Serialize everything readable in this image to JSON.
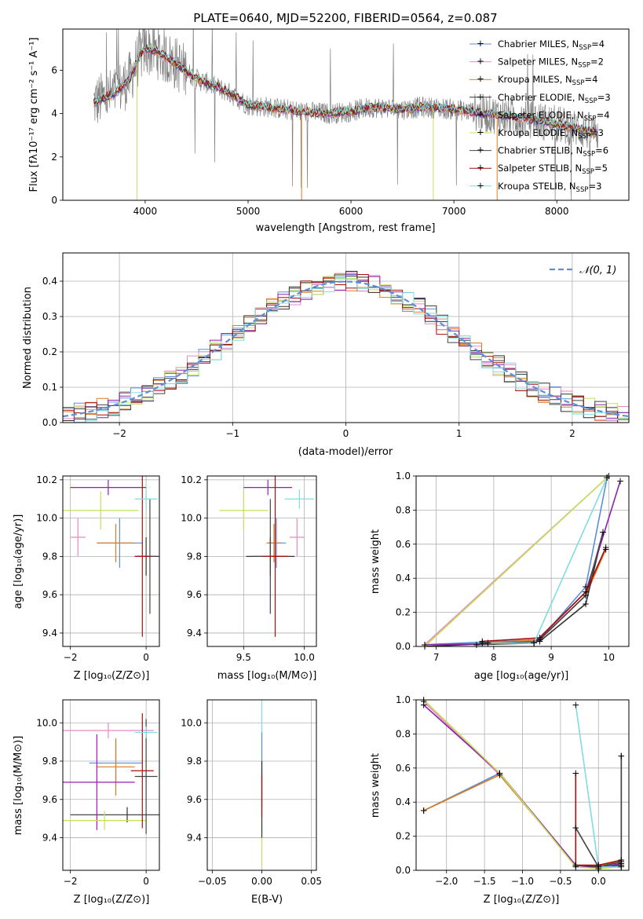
{
  "colors": {
    "Chabrier MILES": "#5b8fdc",
    "Salpeter MILES": "#e88ac0",
    "Kroupa MILES": "#e07a20",
    "Chabrier ELODIE": "#333333",
    "Salpeter ELODIE": "#8e22a8",
    "Kroupa ELODIE": "#c4e05a",
    "Chabrier STELIB": "#444444",
    "Salpeter STELIB": "#a50e0e",
    "Kroupa STELIB": "#7fdde0",
    "data": "#808080",
    "gauss": "#5b8fdc"
  },
  "chart_data": [
    {
      "id": "spectrum",
      "type": "line",
      "title": "PLATE=0640, MJD=52200, FIBERID=0564, z=0.087",
      "xlabel": "wavelength [Angstrom, rest frame]",
      "ylabel": "Flux [fλ10⁻¹⁷ erg cm⁻² s⁻¹ A⁻¹]",
      "xlim": [
        3200,
        8700
      ],
      "ylim": [
        0,
        7.9
      ],
      "xticks": [
        "4000",
        "5000",
        "6000",
        "7000",
        "8000"
      ],
      "yticks": [
        "0",
        "2",
        "4",
        "6"
      ],
      "grid": false,
      "legend_position": "upper-right",
      "legend": [
        {
          "base": "Chabrier MILES, N",
          "sub": "SSP",
          "tail": "=4"
        },
        {
          "base": "Salpeter MILES, N",
          "sub": "SSP",
          "tail": "=2"
        },
        {
          "base": "Kroupa MILES, N",
          "sub": "SSP",
          "tail": "=4"
        },
        {
          "base": "Chabrier ELODIE, N",
          "sub": "SSP",
          "tail": "=3"
        },
        {
          "base": "Salpeter ELODIE, N",
          "sub": "SSP",
          "tail": "=4"
        },
        {
          "base": "Kroupa ELODIE, N",
          "sub": "SSP",
          "tail": "=3"
        },
        {
          "base": "Chabrier STELIB, N",
          "sub": "SSP",
          "tail": "=6"
        },
        {
          "base": "Salpeter STELIB, N",
          "sub": "SSP",
          "tail": "=5"
        },
        {
          "base": "Kroupa STELIB, N",
          "sub": "SSP",
          "tail": "=3"
        }
      ],
      "continuum": [
        [
          3500,
          4.5
        ],
        [
          3550,
          4.6
        ],
        [
          3700,
          4.9
        ],
        [
          3850,
          5.6
        ],
        [
          3950,
          6.7
        ],
        [
          4000,
          7.0
        ],
        [
          4100,
          6.9
        ],
        [
          4300,
          6.3
        ],
        [
          4500,
          5.6
        ],
        [
          4800,
          5.0
        ],
        [
          5000,
          4.4
        ],
        [
          5200,
          4.3
        ],
        [
          5500,
          4.1
        ],
        [
          5800,
          4.0
        ],
        [
          6000,
          4.1
        ],
        [
          6200,
          4.3
        ],
        [
          6500,
          4.2
        ],
        [
          6700,
          4.3
        ],
        [
          7000,
          4.2
        ],
        [
          7300,
          4.0
        ],
        [
          7500,
          3.9
        ],
        [
          7800,
          3.7
        ],
        [
          8000,
          3.5
        ],
        [
          8300,
          3.2
        ],
        [
          8400,
          3.1
        ]
      ]
    },
    {
      "id": "residuals",
      "type": "line",
      "xlabel": "(data-model)/error",
      "ylabel": "Normed distribution",
      "xlim": [
        -2.5,
        2.5
      ],
      "ylim": [
        0,
        0.48
      ],
      "xticks": [
        "−2",
        "−1",
        "0",
        "1",
        "2"
      ],
      "yticks": [
        "0.0",
        "0.1",
        "0.2",
        "0.3",
        "0.4"
      ],
      "grid": true,
      "legend": "𝒩(0, 1)",
      "legend_position": "upper-right"
    },
    {
      "id": "age-vs-Z",
      "type": "scatter",
      "xlabel": "Z [log₁₀(Z/Z⊙)]",
      "ylabel": "age  [log₁₀(age/yr)]",
      "xlim": [
        -2.2,
        0.35
      ],
      "ylim": [
        9.33,
        10.22
      ],
      "xticks": [
        "−2",
        "0"
      ],
      "yticks": [
        "9.4",
        "9.6",
        "9.8",
        "10.0",
        "10.2"
      ],
      "grid": true,
      "points": [
        {
          "model": "Chabrier MILES",
          "x": -0.7,
          "xerr": 0.6,
          "y": 9.87,
          "yerr": 0.13
        },
        {
          "model": "Salpeter MILES",
          "x": -1.8,
          "xerr": 0.2,
          "y": 9.9,
          "yerr": 0.1
        },
        {
          "model": "Kroupa MILES",
          "x": -0.8,
          "xerr": 0.5,
          "y": 9.87,
          "yerr": 0.1
        },
        {
          "model": "Chabrier ELODIE",
          "x": 0.0,
          "xerr": 0.3,
          "y": 9.8,
          "yerr": 0.1
        },
        {
          "model": "Salpeter ELODIE",
          "x": -1.0,
          "xerr": 1.0,
          "y": 10.16,
          "yerr": 0.04
        },
        {
          "model": "Kroupa ELODIE",
          "x": -1.2,
          "xerr": 1.0,
          "y": 10.04,
          "yerr": 0.1
        },
        {
          "model": "Chabrier STELIB",
          "x": 0.1,
          "xerr": 0.3,
          "y": 9.8,
          "yerr": 0.3
        },
        {
          "model": "Salpeter STELIB",
          "x": -0.1,
          "xerr": 0.2,
          "y": 9.8,
          "yerr": 0.42
        },
        {
          "model": "Kroupa STELIB",
          "x": 0.0,
          "xerr": 0.3,
          "y": 10.1,
          "yerr": 0.05
        }
      ]
    },
    {
      "id": "age-vs-mass",
      "type": "scatter",
      "xlabel": "mass [log₁₀(M/M⊙)]",
      "xlim": [
        9.2,
        10.1
      ],
      "ylim": [
        9.33,
        10.22
      ],
      "xticks": [
        "9.5",
        "10.0"
      ],
      "yticks": [
        "9.4",
        "9.6",
        "9.8",
        "10.0",
        "10.2"
      ],
      "grid": true,
      "points": [
        {
          "model": "Chabrier MILES",
          "x": 9.77,
          "xerr": 0.08,
          "y": 9.87,
          "yerr": 0.13
        },
        {
          "model": "Salpeter MILES",
          "x": 9.94,
          "xerr": 0.06,
          "y": 9.9,
          "yerr": 0.1
        },
        {
          "model": "Kroupa MILES",
          "x": 9.75,
          "xerr": 0.06,
          "y": 9.87,
          "yerr": 0.1
        },
        {
          "model": "Chabrier ELODIE",
          "x": 9.72,
          "xerr": 0.2,
          "y": 9.8,
          "yerr": 0.1
        },
        {
          "model": "Salpeter ELODIE",
          "x": 9.7,
          "xerr": 0.2,
          "y": 10.16,
          "yerr": 0.04
        },
        {
          "model": "Kroupa ELODIE",
          "x": 9.5,
          "xerr": 0.2,
          "y": 10.04,
          "yerr": 0.1
        },
        {
          "model": "Chabrier STELIB",
          "x": 9.72,
          "xerr": 0.15,
          "y": 9.8,
          "yerr": 0.3
        },
        {
          "model": "Salpeter STELIB",
          "x": 9.76,
          "xerr": 0.1,
          "y": 9.8,
          "yerr": 0.42
        },
        {
          "model": "Kroupa STELIB",
          "x": 9.96,
          "xerr": 0.12,
          "y": 10.1,
          "yerr": 0.05
        }
      ]
    },
    {
      "id": "weight-vs-age",
      "type": "line",
      "xlabel": "age  [log₁₀(age/yr)]",
      "ylabel": "mass weight",
      "xlim": [
        6.65,
        10.35
      ],
      "ylim": [
        0,
        1
      ],
      "xticks": [
        "7",
        "8",
        "9",
        "10"
      ],
      "yticks": [
        "0.0",
        "0.2",
        "0.4",
        "0.6",
        "0.8",
        "1.0"
      ],
      "grid": true,
      "series": [
        {
          "model": "Chabrier MILES",
          "x": [
            6.8,
            8.8,
            9.6,
            9.97
          ],
          "y": [
            0.01,
            0.04,
            0.35,
            0.99
          ]
        },
        {
          "model": "Salpeter MILES",
          "x": [
            6.8,
            9.97
          ],
          "y": [
            0.01,
            0.99
          ]
        },
        {
          "model": "Kroupa MILES",
          "x": [
            7.8,
            8.8,
            9.6,
            9.95
          ],
          "y": [
            0.02,
            0.04,
            0.3,
            0.57
          ]
        },
        {
          "model": "Chabrier ELODIE",
          "x": [
            6.8,
            8.8,
            9.6,
            9.9
          ],
          "y": [
            0.0,
            0.03,
            0.25,
            0.67
          ]
        },
        {
          "model": "Salpeter ELODIE",
          "x": [
            6.8,
            8.7,
            9.6,
            10.2
          ],
          "y": [
            0.01,
            0.02,
            0.32,
            0.97
          ]
        },
        {
          "model": "Kroupa ELODIE",
          "x": [
            6.8,
            10.0
          ],
          "y": [
            0.0,
            1.0
          ]
        },
        {
          "model": "Chabrier STELIB",
          "x": [
            7.7,
            8.7,
            8.8,
            9.6,
            9.9
          ],
          "y": [
            0.01,
            0.02,
            0.04,
            0.3,
            0.67
          ]
        },
        {
          "model": "Salpeter STELIB",
          "x": [
            7.8,
            8.8,
            9.6,
            9.95
          ],
          "y": [
            0.03,
            0.05,
            0.32,
            0.58
          ]
        },
        {
          "model": "Kroupa STELIB",
          "x": [
            7.9,
            8.7,
            9.97
          ],
          "y": [
            0.02,
            0.02,
            0.99
          ]
        }
      ]
    },
    {
      "id": "mass-vs-Z",
      "type": "scatter",
      "xlabel": "Z [log₁₀(Z/Z⊙)]",
      "ylabel": "mass [log₁₀(M/M⊙)]",
      "xlim": [
        -2.2,
        0.35
      ],
      "ylim": [
        9.23,
        10.12
      ],
      "xticks": [
        "−2",
        "0"
      ],
      "yticks": [
        "9.4",
        "9.6",
        "9.8",
        "10.0"
      ],
      "grid": true,
      "points": [
        {
          "model": "Chabrier MILES",
          "x": -0.8,
          "xerr": 0.7,
          "y": 9.79,
          "yerr": 0.12
        },
        {
          "model": "Salpeter MILES",
          "x": -1.0,
          "xerr": 1.2,
          "y": 9.96,
          "yerr": 0.04
        },
        {
          "model": "Kroupa MILES",
          "x": -0.8,
          "xerr": 0.5,
          "y": 9.77,
          "yerr": 0.15
        },
        {
          "model": "Chabrier ELODIE",
          "x": -0.5,
          "xerr": 1.5,
          "y": 9.52,
          "yerr": 0.04
        },
        {
          "model": "Salpeter ELODIE",
          "x": -1.3,
          "xerr": 1.0,
          "y": 9.69,
          "yerr": 0.25
        },
        {
          "model": "Kroupa ELODIE",
          "x": -1.1,
          "xerr": 1.1,
          "y": 9.49,
          "yerr": 0.05
        },
        {
          "model": "Chabrier STELIB",
          "x": 0.0,
          "xerr": 0.3,
          "y": 9.72,
          "yerr": 0.3
        },
        {
          "model": "Salpeter STELIB",
          "x": -0.1,
          "xerr": 0.3,
          "y": 9.75,
          "yerr": 0.3
        },
        {
          "model": "Kroupa STELIB",
          "x": 0.0,
          "xerr": 0.3,
          "y": 9.95,
          "yerr": 0.03
        }
      ]
    },
    {
      "id": "mass-vs-EBV",
      "type": "scatter",
      "xlabel": "E(B-V)",
      "xlim": [
        -0.055,
        0.055
      ],
      "ylim": [
        9.23,
        10.12
      ],
      "xticks": [
        "−0.05",
        "0.00",
        "0.05"
      ],
      "yticks": [
        "9.4",
        "9.6",
        "9.8",
        "10.0"
      ],
      "grid": true,
      "points": [
        {
          "model": "Kroupa ELODIE",
          "x": 0.0,
          "y": 9.4,
          "yerr": 0.15
        },
        {
          "model": "Kroupa STELIB",
          "x": 0.0,
          "y": 9.9,
          "yerr": 0.22
        },
        {
          "model": "Chabrier MILES",
          "x": 0.0,
          "y": 9.75,
          "yerr": 0.2
        },
        {
          "model": "Chabrier ELODIE",
          "x": 0.0,
          "y": 9.6,
          "yerr": 0.2
        },
        {
          "model": "Salpeter STELIB",
          "x": 0.0,
          "y": 9.62,
          "yerr": 0.11
        }
      ]
    },
    {
      "id": "weight-vs-Z",
      "type": "line",
      "xlabel": "Z [log₁₀(Z/Z⊙)]",
      "ylabel": "mass weight",
      "xlim": [
        -2.4,
        0.4
      ],
      "ylim": [
        0,
        1
      ],
      "xticks": [
        "−2.0",
        "−1.5",
        "−1.0",
        "−0.5",
        "0.0"
      ],
      "yticks": [
        "0.0",
        "0.2",
        "0.4",
        "0.6",
        "0.8",
        "1.0"
      ],
      "grid": true,
      "series": [
        {
          "model": "Chabrier MILES",
          "x": [
            -2.3,
            -1.3,
            -0.3,
            0.0,
            0.3
          ],
          "y": [
            0.35,
            0.57,
            0.03,
            0.02,
            0.04
          ]
        },
        {
          "model": "Salpeter MILES",
          "x": [
            -2.3,
            -1.3,
            -0.3,
            0.0,
            0.3
          ],
          "y": [
            0.99,
            0.56,
            0.03,
            0.02,
            0.05
          ]
        },
        {
          "model": "Kroupa MILES",
          "x": [
            -2.3,
            -1.3,
            -0.3,
            0.0,
            0.3
          ],
          "y": [
            0.35,
            0.56,
            0.03,
            0.03,
            0.05
          ]
        },
        {
          "model": "Chabrier ELODIE",
          "x": [
            -0.3,
            0.0,
            0.3,
            0.3
          ],
          "y": [
            0.03,
            0.02,
            0.03,
            0.67
          ]
        },
        {
          "model": "Salpeter ELODIE",
          "x": [
            -2.3,
            -1.3,
            -0.3,
            0.0,
            0.3
          ],
          "y": [
            0.97,
            0.57,
            0.03,
            0.01,
            0.04
          ]
        },
        {
          "model": "Kroupa ELODIE",
          "x": [
            -2.3,
            -1.3,
            -0.3,
            0.0,
            0.3
          ],
          "y": [
            1.0,
            0.57,
            0.02,
            0.01,
            0.02
          ]
        },
        {
          "model": "Chabrier STELIB",
          "x": [
            -0.3,
            0.0,
            0.3,
            0.3
          ],
          "y": [
            0.25,
            0.02,
            0.05,
            0.67
          ]
        },
        {
          "model": "Salpeter STELIB",
          "x": [
            -0.3,
            -0.3,
            0.0,
            0.3
          ],
          "y": [
            0.57,
            0.03,
            0.03,
            0.06
          ]
        },
        {
          "model": "Kroupa STELIB",
          "x": [
            -0.3,
            0.0,
            0.3
          ],
          "y": [
            0.97,
            0.02,
            0.02
          ]
        }
      ]
    }
  ]
}
